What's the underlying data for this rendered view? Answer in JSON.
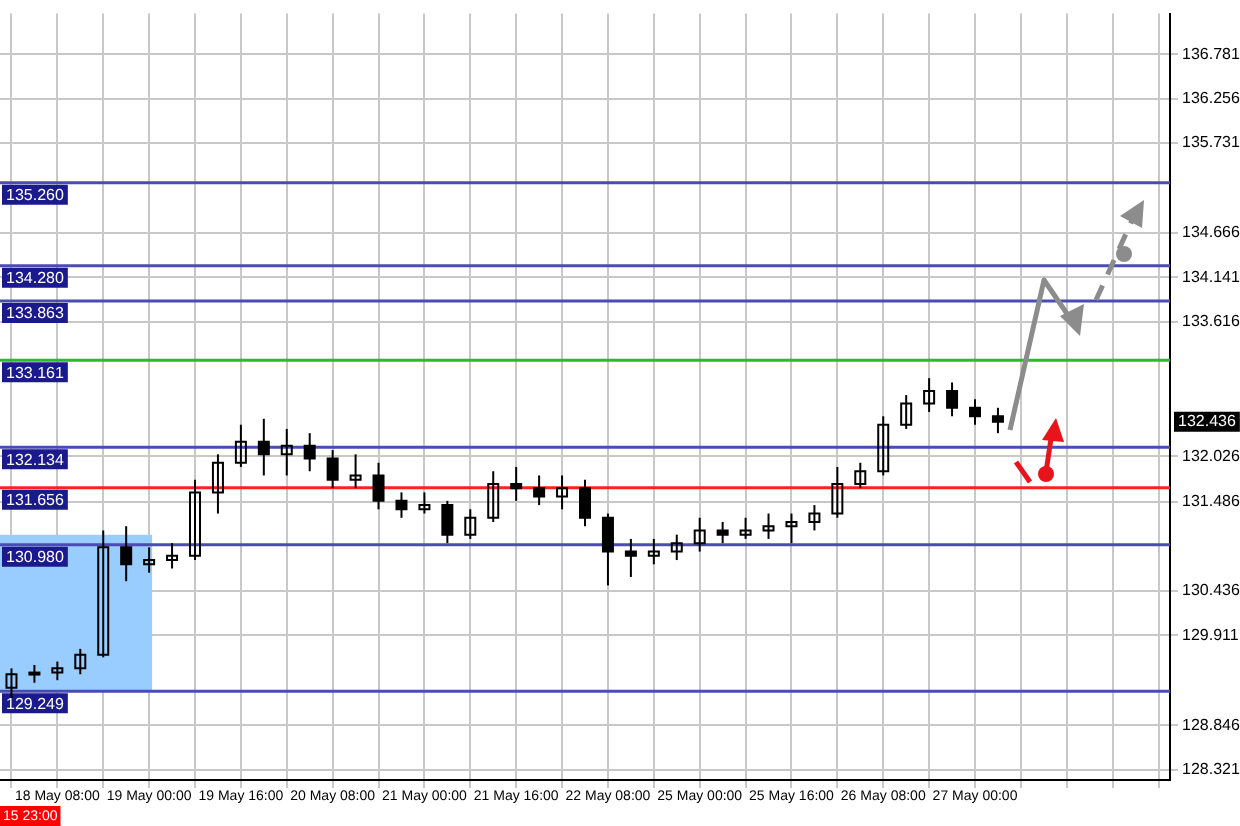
{
  "chart_data": {
    "type": "candlestick",
    "color": "#000000",
    "categories": [
      null,
      null,
      "18 May 08:00",
      null,
      null,
      null,
      "19 May 00:00",
      null,
      null,
      null,
      "19 May 16:00",
      null,
      null,
      null,
      "20 May 08:00",
      null,
      null,
      null,
      "21 May 00:00",
      null,
      null,
      null,
      "21 May 16:00",
      null,
      null,
      null,
      "22 May 08:00",
      null,
      null,
      null,
      "25 May 00:00",
      null,
      null,
      null,
      "25 May 16:00",
      null,
      null,
      null,
      "26 May 08:00",
      null,
      null,
      null,
      "27 May 00:00",
      null,
      null,
      null,
      null,
      null,
      null,
      null,
      null
    ],
    "ohlc": [
      [
        129.29,
        129.52,
        129.17,
        129.45
      ],
      [
        129.45,
        129.56,
        129.35,
        129.47
      ],
      [
        129.47,
        129.6,
        129.38,
        129.52
      ],
      [
        129.52,
        129.75,
        129.45,
        129.68
      ],
      [
        129.68,
        131.15,
        129.65,
        130.95
      ],
      [
        130.95,
        131.2,
        130.55,
        130.75
      ],
      [
        130.75,
        130.95,
        130.65,
        130.8
      ],
      [
        130.8,
        131.0,
        130.7,
        130.85
      ],
      [
        130.85,
        131.75,
        130.8,
        131.6
      ],
      [
        131.6,
        132.05,
        131.35,
        131.95
      ],
      [
        131.95,
        132.4,
        131.9,
        132.2
      ],
      [
        132.2,
        132.47,
        131.8,
        132.05
      ],
      [
        132.05,
        132.35,
        131.8,
        132.15
      ],
      [
        132.15,
        132.3,
        131.85,
        132.0
      ],
      [
        132.0,
        132.1,
        131.65,
        131.75
      ],
      [
        131.75,
        132.05,
        131.65,
        131.8
      ],
      [
        131.8,
        131.95,
        131.4,
        131.5
      ],
      [
        131.5,
        131.6,
        131.3,
        131.4
      ],
      [
        131.4,
        131.6,
        131.35,
        131.45
      ],
      [
        131.45,
        131.5,
        131.0,
        131.1
      ],
      [
        131.1,
        131.4,
        131.05,
        131.3
      ],
      [
        131.3,
        131.85,
        131.25,
        131.7
      ],
      [
        131.7,
        131.9,
        131.5,
        131.65
      ],
      [
        131.65,
        131.8,
        131.45,
        131.55
      ],
      [
        131.55,
        131.8,
        131.4,
        131.65
      ],
      [
        131.65,
        131.75,
        131.2,
        131.3
      ],
      [
        131.3,
        131.35,
        130.5,
        130.9
      ],
      [
        130.9,
        131.05,
        130.6,
        130.85
      ],
      [
        130.85,
        131.05,
        130.75,
        130.9
      ],
      [
        130.9,
        131.1,
        130.8,
        131.0
      ],
      [
        131.0,
        131.3,
        130.9,
        131.15
      ],
      [
        131.15,
        131.25,
        131.0,
        131.1
      ],
      [
        131.1,
        131.3,
        131.05,
        131.15
      ],
      [
        131.15,
        131.35,
        131.05,
        131.2
      ],
      [
        131.2,
        131.35,
        131.0,
        131.25
      ],
      [
        131.25,
        131.45,
        131.15,
        131.35
      ],
      [
        131.35,
        131.9,
        131.3,
        131.7
      ],
      [
        131.7,
        131.95,
        131.65,
        131.85
      ],
      [
        131.85,
        132.5,
        131.8,
        132.4
      ],
      [
        132.4,
        132.75,
        132.35,
        132.65
      ],
      [
        132.65,
        132.95,
        132.55,
        132.8
      ],
      [
        132.8,
        132.9,
        132.5,
        132.6
      ],
      [
        132.6,
        132.7,
        132.4,
        132.5
      ],
      [
        132.5,
        132.6,
        132.3,
        132.436
      ],
      null,
      null,
      null,
      null,
      null,
      null,
      null
    ],
    "ylim": [
      128.2,
      137.26
    ],
    "yticks": [
      {
        "value": 136.781,
        "label": "136.781"
      },
      {
        "value": 136.256,
        "label": "136.256"
      },
      {
        "value": 135.731,
        "label": "135.731"
      },
      {
        "value": 134.666,
        "label": "134.666"
      },
      {
        "value": 134.141,
        "label": "134.141"
      },
      {
        "value": 133.616,
        "label": "133.616"
      },
      {
        "value": 132.026,
        "label": "132.026"
      },
      {
        "value": 131.486,
        "label": "131.486"
      },
      {
        "value": 130.436,
        "label": "130.436"
      },
      {
        "value": 129.911,
        "label": "129.911"
      },
      {
        "value": 128.846,
        "label": "128.846"
      },
      {
        "value": 128.321,
        "label": "128.321"
      }
    ],
    "grid": true,
    "legend": false,
    "ref_lines": [
      {
        "axis": "y",
        "value": 135.26,
        "label": "135.260",
        "color": "#4b4bb4"
      },
      {
        "axis": "y",
        "value": 134.28,
        "label": "134.280",
        "color": "#4b4bb4"
      },
      {
        "axis": "y",
        "value": 133.863,
        "label": "133.863",
        "color": "#4b4bb4"
      },
      {
        "axis": "y",
        "value": 133.161,
        "label": "133.161",
        "color": "#22c022"
      },
      {
        "axis": "y",
        "value": 132.134,
        "label": "132.134",
        "color": "#4b4bb4"
      },
      {
        "axis": "y",
        "value": 131.656,
        "label": "131.656",
        "color": "#ff2020"
      },
      {
        "axis": "y",
        "value": 130.98,
        "label": "130.980",
        "color": "#4b4bb4"
      },
      {
        "axis": "y",
        "value": 129.249,
        "label": "129.249",
        "color": "#4b4bb4"
      }
    ],
    "bands": [
      {
        "axis": "y",
        "from": 129.249,
        "to": 131.1,
        "color": "#99ccff"
      }
    ],
    "annotations": [
      "15 23:00",
      {
        "text": "132.436",
        "y": 132.436
      }
    ]
  }
}
